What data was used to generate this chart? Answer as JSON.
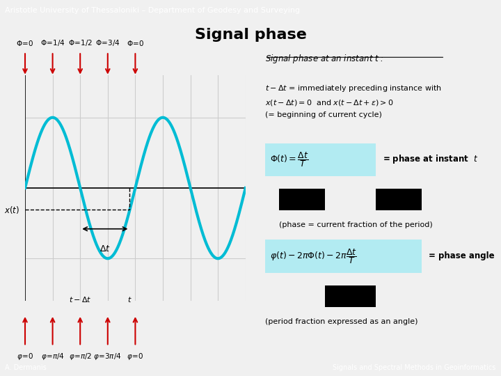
{
  "header_text": "Aristotle University of Thessaloniki – Department of Geodesy and Surveying",
  "title": "Signal phase",
  "header_bg": "#6c8ebf",
  "header_fg": "#ffffff",
  "bg_color": "#f0f0f0",
  "footer_left": "A. Dermanis",
  "footer_right": "Signals and Spectral Methods in Geoinformatics",
  "wave_color": "#00bcd4",
  "wave_lw": 3.0,
  "grid_color": "#cccccc",
  "arrow_color": "#cc0000",
  "cyan_box_color": "#b2ebf2",
  "black_box_color": "#000000"
}
